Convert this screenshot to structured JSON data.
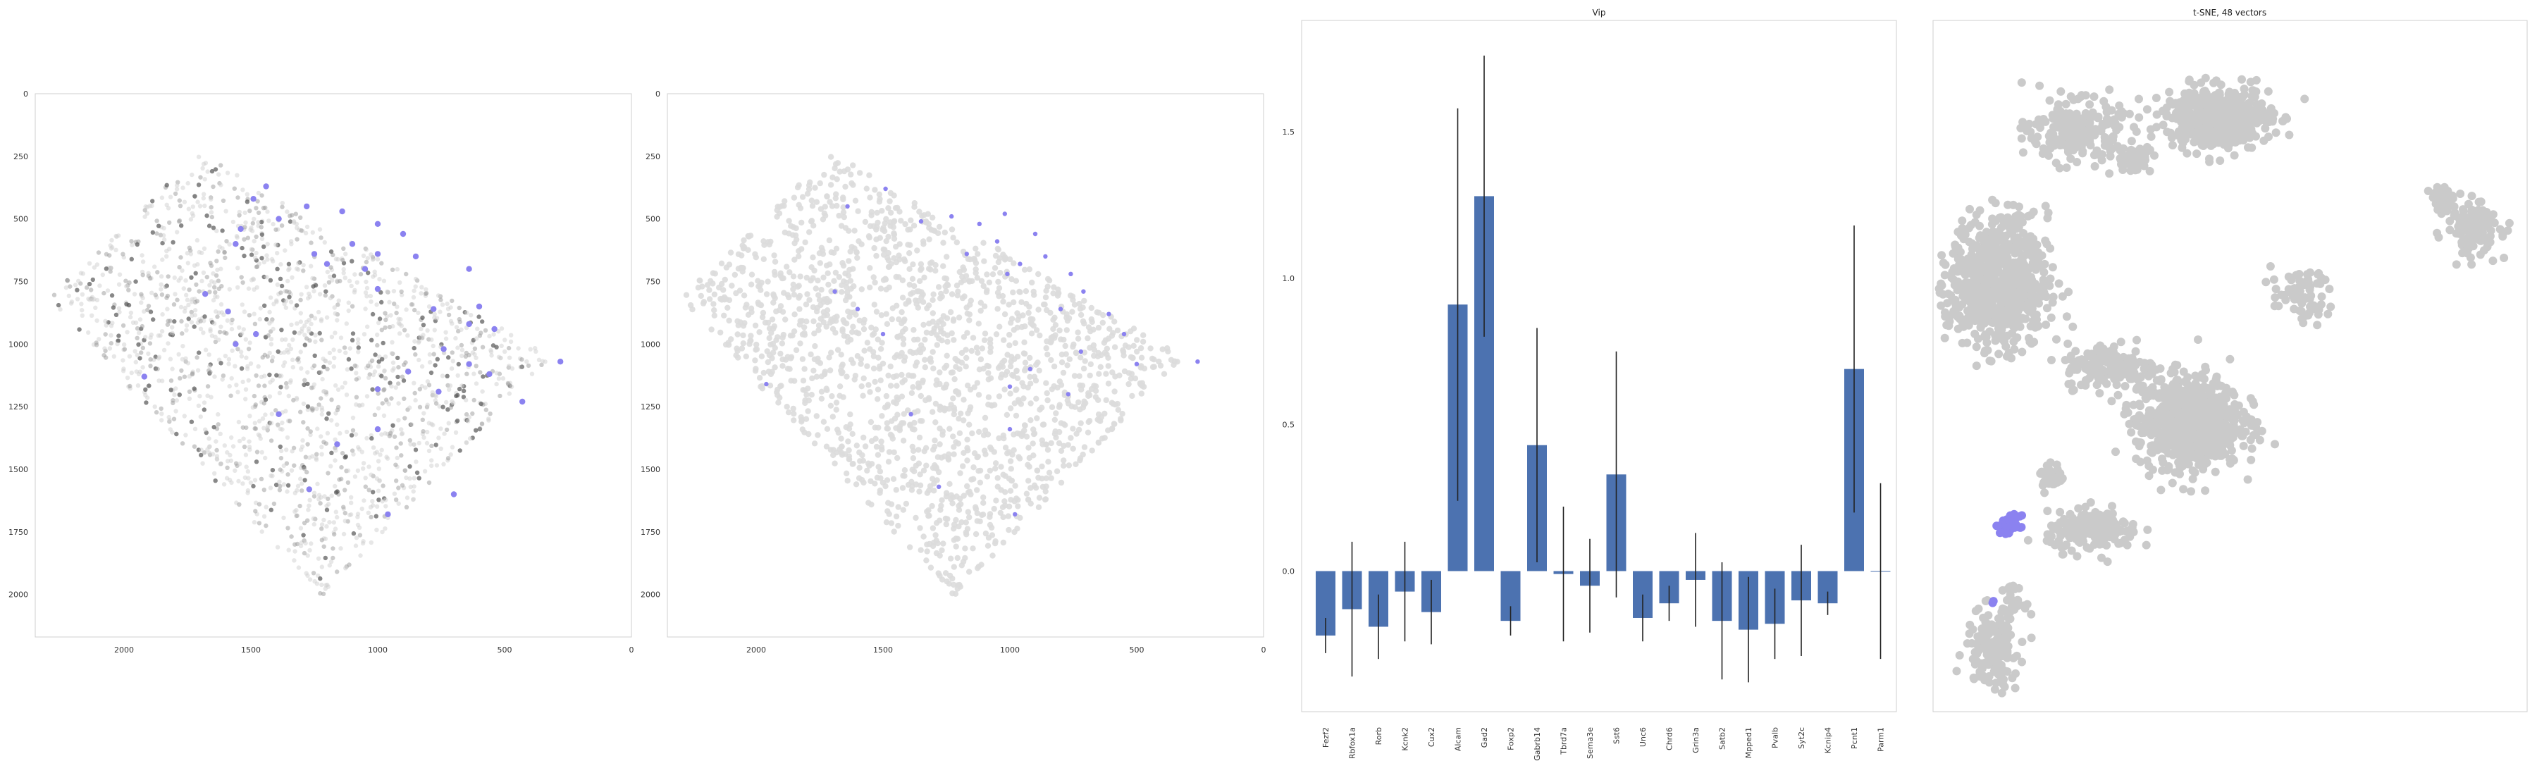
{
  "chart_data": [
    {
      "type": "scatter",
      "title": "",
      "xlabel": "",
      "ylabel": "",
      "xlim": [
        2350,
        0
      ],
      "ylim": [
        2170,
        0
      ],
      "x_ticks": [
        "2000",
        "1500",
        "1000",
        "500",
        "0"
      ],
      "y_ticks": [
        "0",
        "250",
        "500",
        "750",
        "1000",
        "1250",
        "1500",
        "1750",
        "2000"
      ],
      "grid": false,
      "legend": "none",
      "colors": {
        "background_points": "#808080",
        "highlight_points": "#8b82f0"
      },
      "highlight_points": [
        [
          1440,
          370
        ],
        [
          1490,
          420
        ],
        [
          1390,
          500
        ],
        [
          1280,
          450
        ],
        [
          1140,
          470
        ],
        [
          1000,
          520
        ],
        [
          900,
          560
        ],
        [
          1100,
          600
        ],
        [
          1250,
          640
        ],
        [
          1200,
          680
        ],
        [
          1000,
          640
        ],
        [
          850,
          650
        ],
        [
          1050,
          700
        ],
        [
          1000,
          780
        ],
        [
          1540,
          540
        ],
        [
          1560,
          600
        ],
        [
          640,
          700
        ],
        [
          780,
          860
        ],
        [
          600,
          850
        ],
        [
          540,
          940
        ],
        [
          640,
          920
        ],
        [
          740,
          1020
        ],
        [
          1680,
          800
        ],
        [
          1590,
          870
        ],
        [
          1480,
          960
        ],
        [
          1560,
          1000
        ],
        [
          640,
          1080
        ],
        [
          560,
          1120
        ],
        [
          280,
          1070
        ],
        [
          880,
          1110
        ],
        [
          1000,
          1180
        ],
        [
          760,
          1190
        ],
        [
          1920,
          1130
        ],
        [
          430,
          1230
        ],
        [
          1390,
          1280
        ],
        [
          1000,
          1340
        ],
        [
          1160,
          1400
        ],
        [
          1270,
          1580
        ],
        [
          700,
          1600
        ],
        [
          960,
          1680
        ]
      ]
    },
    {
      "type": "scatter",
      "title": "",
      "xlabel": "",
      "ylabel": "",
      "xlim": [
        2350,
        0
      ],
      "ylim": [
        2170,
        0
      ],
      "x_ticks": [
        "2000",
        "1500",
        "1000",
        "500",
        "0"
      ],
      "y_ticks": [
        "0",
        "250",
        "500",
        "750",
        "1000",
        "1250",
        "1500",
        "1750",
        "2000"
      ],
      "grid": false,
      "legend": "none",
      "colors": {
        "background_points": "#dcdcdc",
        "highlight_points": "#8b82f0"
      },
      "highlight_points": [
        [
          1640,
          450
        ],
        [
          1490,
          380
        ],
        [
          1350,
          510
        ],
        [
          1230,
          490
        ],
        [
          1120,
          520
        ],
        [
          1020,
          480
        ],
        [
          900,
          560
        ],
        [
          1050,
          590
        ],
        [
          1170,
          640
        ],
        [
          960,
          680
        ],
        [
          860,
          650
        ],
        [
          1010,
          720
        ],
        [
          760,
          720
        ],
        [
          710,
          790
        ],
        [
          800,
          860
        ],
        [
          610,
          880
        ],
        [
          550,
          960
        ],
        [
          720,
          1030
        ],
        [
          500,
          1080
        ],
        [
          260,
          1070
        ],
        [
          920,
          1100
        ],
        [
          1000,
          1170
        ],
        [
          770,
          1200
        ],
        [
          1690,
          790
        ],
        [
          1600,
          860
        ],
        [
          1500,
          960
        ],
        [
          1960,
          1160
        ],
        [
          1390,
          1280
        ],
        [
          1000,
          1340
        ],
        [
          1280,
          1570
        ],
        [
          980,
          1680
        ]
      ]
    },
    {
      "type": "bar",
      "title": "Vip",
      "xlabel": "",
      "ylabel": "",
      "categories": [
        "Fezf2",
        "Rbfox1a",
        "Rorb",
        "Kcnk2",
        "Cux2",
        "Alcam",
        "Gad2",
        "Foxp2",
        "Gabrb14",
        "Tbrd7a",
        "Sema3e",
        "Sst6",
        "Unc6",
        "Chrd6",
        "Grin3a",
        "Satb2",
        "Mpped1",
        "Pvalb",
        "Syt2c",
        "Kcnip4",
        "Pcnt1",
        "Parm1"
      ],
      "values": [
        -0.22,
        -0.13,
        -0.19,
        -0.07,
        -0.14,
        0.91,
        1.28,
        -0.17,
        0.43,
        -0.01,
        -0.05,
        0.33,
        -0.16,
        -0.11,
        -0.03,
        -0.17,
        -0.2,
        -0.18,
        -0.1,
        -0.11,
        0.69,
        0.0
      ],
      "errors": [
        0.06,
        0.23,
        0.11,
        0.17,
        0.11,
        0.67,
        0.48,
        0.05,
        0.4,
        0.23,
        0.16,
        0.42,
        0.08,
        0.06,
        0.16,
        0.2,
        0.18,
        0.12,
        0.19,
        0.04,
        0.49,
        0.3
      ],
      "ylim": [
        -0.48,
        1.88
      ],
      "y_ticks": [
        "0.0",
        "0.5",
        "1.0",
        "1.5"
      ],
      "grid": false,
      "legend": "none",
      "colors": {
        "bar": "#4c72b0",
        "error": "#222222"
      }
    },
    {
      "type": "scatter",
      "title": "t-SNE, 48 vectors",
      "xlabel": "",
      "ylabel": "",
      "grid": false,
      "legend": "none",
      "colors": {
        "background_points": "#cacaca",
        "highlight_points": "#8b82f0"
      },
      "clusters": [
        {
          "name": "",
          "center": [
            0.48,
            0.86
          ],
          "spread": [
            0.08,
            0.04
          ],
          "count": 500
        },
        {
          "name": "",
          "center": [
            0.24,
            0.84
          ],
          "spread": [
            0.07,
            0.04
          ],
          "count": 230
        },
        {
          "name": "",
          "center": [
            0.34,
            0.8
          ],
          "spread": [
            0.025,
            0.018
          ],
          "count": 60
        },
        {
          "name": "",
          "center": [
            0.91,
            0.7
          ],
          "spread": [
            0.04,
            0.035
          ],
          "count": 130
        },
        {
          "name": "",
          "center": [
            0.86,
            0.74
          ],
          "spread": [
            0.02,
            0.018
          ],
          "count": 35
        },
        {
          "name": "",
          "center": [
            0.62,
            0.6
          ],
          "spread": [
            0.045,
            0.035
          ],
          "count": 70
        },
        {
          "name": "",
          "center": [
            0.11,
            0.62
          ],
          "spread": [
            0.075,
            0.085
          ],
          "count": 750
        },
        {
          "name": "",
          "center": [
            0.3,
            0.5
          ],
          "spread": [
            0.07,
            0.03
          ],
          "count": 180
        },
        {
          "name": "",
          "center": [
            0.43,
            0.42
          ],
          "spread": [
            0.08,
            0.06
          ],
          "count": 800
        },
        {
          "name": "",
          "center": [
            0.2,
            0.34
          ],
          "spread": [
            0.02,
            0.018
          ],
          "count": 35
        },
        {
          "name": "",
          "center": [
            0.27,
            0.26
          ],
          "spread": [
            0.07,
            0.025
          ],
          "count": 160
        },
        {
          "name": "",
          "center": [
            0.27,
            0.27
          ],
          "spread": [
            0.02,
            0.018
          ],
          "count": 30
        },
        {
          "name": "",
          "center": [
            0.1,
            0.09
          ],
          "spread": [
            0.04,
            0.05
          ],
          "count": 160
        },
        {
          "name": "",
          "center": [
            0.13,
            0.16
          ],
          "spread": [
            0.02,
            0.02
          ],
          "count": 30
        }
      ],
      "highlight_clusters": [
        {
          "center": [
            0.13,
            0.27
          ],
          "spread": [
            0.015,
            0.012
          ],
          "count": 45
        },
        {
          "center": [
            0.1,
            0.16
          ],
          "spread": [
            0.004,
            0.004
          ],
          "count": 2
        }
      ]
    }
  ]
}
